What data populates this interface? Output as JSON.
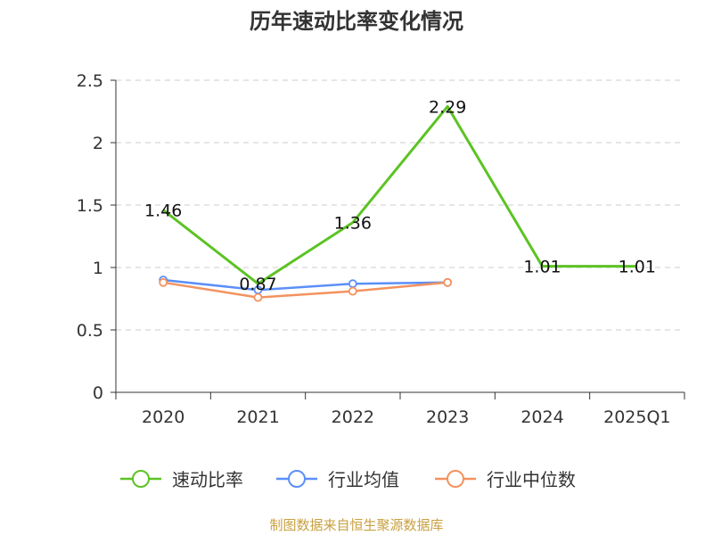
{
  "chart_data": {
    "type": "line",
    "title": "历年速动比率变化情况",
    "categories": [
      "2020",
      "2021",
      "2022",
      "2023",
      "2024",
      "2025Q1"
    ],
    "ylim": [
      0,
      2.5
    ],
    "yticks": [
      "0",
      "0.5",
      "1",
      "1.5",
      "2",
      "2.5"
    ],
    "grid": true,
    "legend_position": "bottom",
    "series": [
      {
        "name": "速动比率",
        "color": "#5cc323",
        "values": [
          1.46,
          0.87,
          1.36,
          2.29,
          1.01,
          1.01
        ],
        "labels": [
          "1.46",
          "0.87",
          "1.36",
          "2.29",
          "1.01",
          "1.01"
        ]
      },
      {
        "name": "行业均值",
        "color": "#5b8ff9",
        "values": [
          0.9,
          0.82,
          0.87,
          0.88,
          null,
          null
        ]
      },
      {
        "name": "行业中位数",
        "color": "#f4925e",
        "values": [
          0.88,
          0.76,
          0.81,
          0.88,
          null,
          null
        ]
      }
    ],
    "source": "制图数据来自恒生聚源数据库"
  }
}
